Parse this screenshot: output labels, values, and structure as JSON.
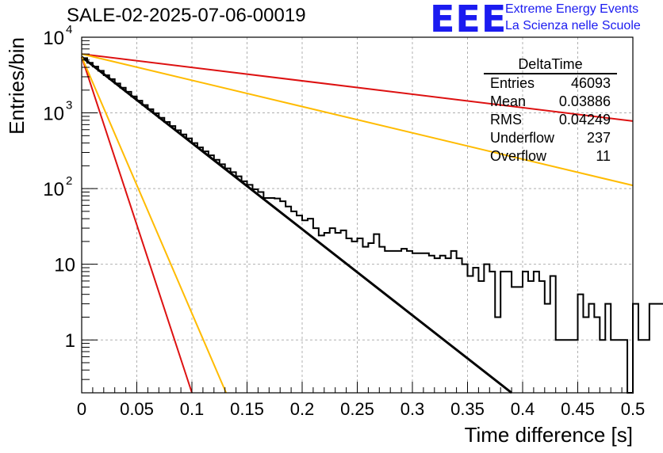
{
  "header": {
    "plot_title": "SALE-02-2025-07-06-00019",
    "logo_text": "EEE",
    "logo_line1": "Extreme Energy Events",
    "logo_line2": "La Scienza nelle Scuole"
  },
  "stats_box": {
    "title": "DeltaTime",
    "rows": [
      {
        "label": "Entries",
        "value": "46093"
      },
      {
        "label": "Mean",
        "value": "0.03886"
      },
      {
        "label": "RMS",
        "value": "0.04249"
      },
      {
        "label": "Underflow",
        "value": "237"
      },
      {
        "label": "Overflow",
        "value": "11"
      }
    ]
  },
  "chart_data": {
    "type": "histogram",
    "title": "SALE-02-2025-07-06-00019",
    "xlabel": "Time difference [s]",
    "ylabel": "Entries/bin",
    "xlim": [
      0,
      0.5
    ],
    "ylim": [
      0.2,
      10000
    ],
    "yscale": "log",
    "grid": true,
    "x_ticks": [
      "0",
      "0.05",
      "0.1",
      "0.15",
      "0.2",
      "0.25",
      "0.3",
      "0.35",
      "0.4",
      "0.45",
      "0.5"
    ],
    "x_tick_values": [
      0,
      0.05,
      0.1,
      0.15,
      0.2,
      0.25,
      0.3,
      0.35,
      0.4,
      0.45,
      0.5
    ],
    "y_ticks": [
      {
        "value": 1,
        "label": "1"
      },
      {
        "value": 10,
        "label": "10"
      },
      {
        "value": 100,
        "label": "10",
        "exp": "2"
      },
      {
        "value": 1000,
        "label": "10",
        "exp": "3"
      },
      {
        "value": 10000,
        "label": "10",
        "exp": "4"
      }
    ],
    "histogram": {
      "bin_width": 0.005,
      "color": "#000000",
      "counts": [
        5300,
        4600,
        4100,
        3600,
        3150,
        2800,
        2450,
        2150,
        1900,
        1650,
        1450,
        1270,
        1120,
        990,
        860,
        760,
        670,
        590,
        520,
        460,
        400,
        350,
        310,
        275,
        240,
        210,
        185,
        165,
        145,
        125,
        112,
        98,
        90,
        75,
        75,
        74,
        68,
        58,
        50,
        44,
        38,
        40,
        30,
        24,
        26,
        30,
        26,
        28,
        22,
        20,
        22,
        17,
        19,
        25,
        17,
        15,
        15,
        15,
        16,
        15,
        14,
        14,
        14,
        13,
        12,
        13,
        12,
        15,
        12,
        10,
        7,
        9,
        6,
        10,
        8,
        2,
        8,
        8,
        5,
        5,
        8,
        6,
        8,
        6,
        3,
        7,
        1,
        1,
        1,
        1,
        4,
        2,
        3,
        2,
        1,
        3,
        1,
        1,
        1,
        0,
        3,
        1,
        1,
        3,
        3,
        3,
        3,
        2,
        3,
        3,
        2,
        3,
        2,
        3,
        3,
        3,
        4,
        0,
        0,
        0
      ]
    },
    "fit_lines": [
      {
        "name": "",
        "color": "#000000",
        "width": 3,
        "x": [
          0,
          0.39
        ],
        "y": [
          5500,
          0.2
        ]
      },
      {
        "name": "",
        "color": "#dd1111",
        "width": 2,
        "x": [
          0,
          0.1
        ],
        "y": [
          5500,
          0.2
        ]
      },
      {
        "name": "",
        "color": "#ffbb00",
        "width": 2,
        "x": [
          0,
          0.131
        ],
        "y": [
          5500,
          0.2
        ]
      },
      {
        "name": "",
        "color": "#dd1111",
        "width": 2,
        "x": [
          0,
          0.5
        ],
        "y": [
          6000,
          780
        ]
      },
      {
        "name": "",
        "color": "#ffbb00",
        "width": 2,
        "x": [
          0,
          0.5
        ],
        "y": [
          6000,
          110
        ]
      }
    ]
  }
}
